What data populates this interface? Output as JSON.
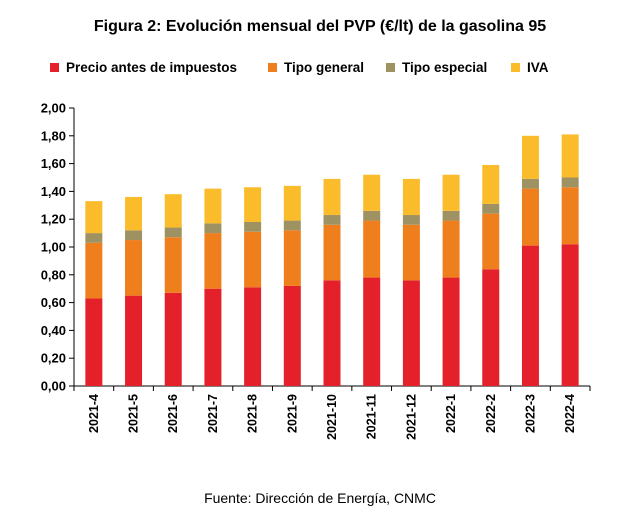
{
  "chart_data": {
    "type": "bar",
    "stacked": true,
    "title": "Figura 2: Evolución mensual del PVP (€/lt) de la gasolina 95",
    "source": "Fuente: Dirección de Energía, CNMC",
    "categories": [
      "2021-4",
      "2021-5",
      "2021-6",
      "2021-7",
      "2021-8",
      "2021-9",
      "2021-10",
      "2021-11",
      "2021-12",
      "2022-1",
      "2022-2",
      "2022-3",
      "2022-4"
    ],
    "series": [
      {
        "name": "Precio antes de impuestos",
        "color": "#e4202a",
        "values": [
          0.63,
          0.65,
          0.67,
          0.7,
          0.71,
          0.72,
          0.76,
          0.78,
          0.76,
          0.78,
          0.84,
          1.01,
          1.02
        ]
      },
      {
        "name": "Tipo general",
        "color": "#ef7e1d",
        "values": [
          0.4,
          0.4,
          0.4,
          0.4,
          0.4,
          0.4,
          0.4,
          0.41,
          0.4,
          0.41,
          0.4,
          0.41,
          0.41
        ]
      },
      {
        "name": "Tipo especial",
        "color": "#9f9262",
        "values": [
          0.07,
          0.07,
          0.07,
          0.07,
          0.07,
          0.07,
          0.07,
          0.07,
          0.07,
          0.07,
          0.07,
          0.07,
          0.07
        ]
      },
      {
        "name": "IVA",
        "color": "#fbbc2c",
        "values": [
          0.23,
          0.24,
          0.24,
          0.25,
          0.25,
          0.25,
          0.26,
          0.26,
          0.26,
          0.26,
          0.28,
          0.31,
          0.31
        ]
      }
    ],
    "yticks": [
      "0,00",
      "0,20",
      "0,40",
      "0,60",
      "0,80",
      "1,00",
      "1,20",
      "1,40",
      "1,60",
      "1,80",
      "2,00"
    ],
    "ylim": [
      0,
      2.0
    ],
    "grid": false,
    "legend_position": "top"
  }
}
